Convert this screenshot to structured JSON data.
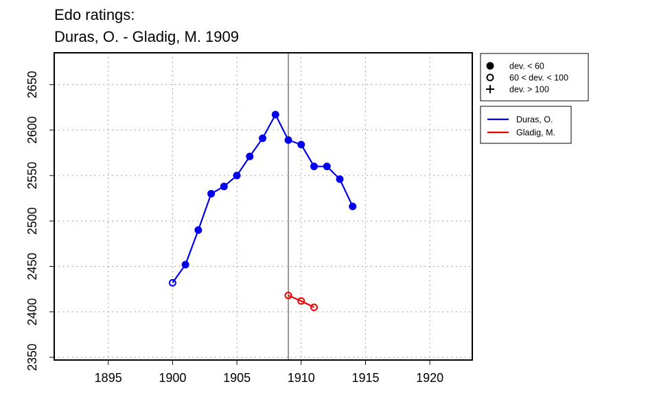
{
  "chart_data": {
    "type": "line",
    "title_lines": [
      "Edo ratings:",
      "Duras, O. - Gladig, M. 1909"
    ],
    "xlabel": "",
    "ylabel": "",
    "xlim": [
      1890.8,
      1923.3
    ],
    "ylim": [
      2347,
      2685
    ],
    "xticks": [
      1895,
      1900,
      1905,
      1910,
      1915,
      1920
    ],
    "yticks": [
      2350,
      2400,
      2450,
      2500,
      2550,
      2600,
      2650
    ],
    "grid": "dotted",
    "vertical_line_x": 1909,
    "marker_legend": {
      "placement": "top-right-outside",
      "items": [
        {
          "marker": "filled-circle",
          "label": "dev. < 60"
        },
        {
          "marker": "open-circle",
          "label": "60 < dev. < 100"
        },
        {
          "marker": "plus",
          "label": "dev. > 100"
        }
      ]
    },
    "series_legend": {
      "placement": "right-outside",
      "items": [
        {
          "label": "Duras, O.",
          "color": "#0000ee"
        },
        {
          "label": "Gladig, M.",
          "color": "#ee0000"
        }
      ]
    },
    "series": [
      {
        "name": "Duras, O.",
        "color": "#0000ee",
        "points": [
          {
            "x": 1900,
            "y": 2432,
            "marker": "open-circle"
          },
          {
            "x": 1901,
            "y": 2452,
            "marker": "filled-circle"
          },
          {
            "x": 1902,
            "y": 2490,
            "marker": "filled-circle"
          },
          {
            "x": 1903,
            "y": 2530,
            "marker": "filled-circle"
          },
          {
            "x": 1904,
            "y": 2538,
            "marker": "filled-circle"
          },
          {
            "x": 1905,
            "y": 2550,
            "marker": "filled-circle"
          },
          {
            "x": 1906,
            "y": 2571,
            "marker": "filled-circle"
          },
          {
            "x": 1907,
            "y": 2591,
            "marker": "filled-circle"
          },
          {
            "x": 1908,
            "y": 2617,
            "marker": "filled-circle"
          },
          {
            "x": 1909,
            "y": 2589,
            "marker": "filled-circle"
          },
          {
            "x": 1910,
            "y": 2584,
            "marker": "filled-circle"
          },
          {
            "x": 1911,
            "y": 2560,
            "marker": "filled-circle"
          },
          {
            "x": 1912,
            "y": 2560,
            "marker": "filled-circle"
          },
          {
            "x": 1913,
            "y": 2546,
            "marker": "filled-circle"
          },
          {
            "x": 1914,
            "y": 2516,
            "marker": "filled-circle"
          }
        ]
      },
      {
        "name": "Gladig, M.",
        "color": "#ee0000",
        "points": [
          {
            "x": 1909,
            "y": 2418,
            "marker": "open-circle"
          },
          {
            "x": 1910,
            "y": 2412,
            "marker": "open-circle"
          },
          {
            "x": 1911,
            "y": 2405,
            "marker": "open-circle"
          }
        ]
      }
    ]
  }
}
